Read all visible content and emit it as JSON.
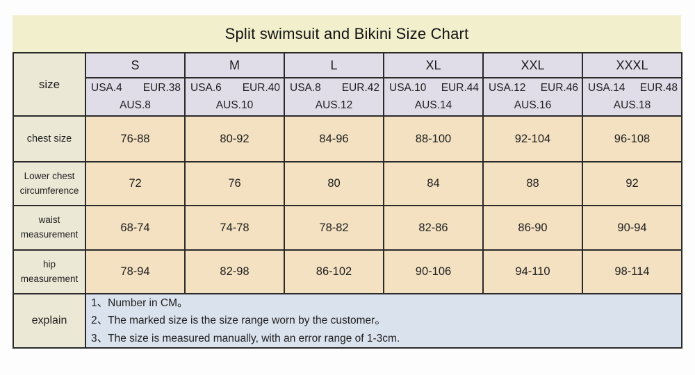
{
  "title": "Split swimsuit and Bikini Size Chart",
  "colors": {
    "title_band_bg": "#f2efcd",
    "header_bg": "#e0dde9",
    "label_bg": "#ebe8d6",
    "data_bg": "#f3e1c1",
    "explain_bg": "#dae2ee",
    "border": "#2a2a2a"
  },
  "table": {
    "size_label": "size",
    "columns": [
      {
        "name": "S",
        "usa": "USA.4",
        "eur": "EUR.38",
        "aus": "AUS.8"
      },
      {
        "name": "M",
        "usa": "USA.6",
        "eur": "EUR.40",
        "aus": "AUS.10"
      },
      {
        "name": "L",
        "usa": "USA.8",
        "eur": "EUR.42",
        "aus": "AUS.12"
      },
      {
        "name": "XL",
        "usa": "USA.10",
        "eur": "EUR.44",
        "aus": "AUS.14"
      },
      {
        "name": "XXL",
        "usa": "USA.12",
        "eur": "EUR.46",
        "aus": "AUS.16"
      },
      {
        "name": "XXXL",
        "usa": "USA.14",
        "eur": "EUR.48",
        "aus": "AUS.18"
      }
    ],
    "rows": [
      {
        "label": "chest size",
        "label_line1": "chest size",
        "label_line2": "",
        "values": [
          "76-88",
          "80-92",
          "84-96",
          "88-100",
          "92-104",
          "96-108"
        ]
      },
      {
        "label": "Lower chest circumference",
        "label_line1": "Lower chest",
        "label_line2": "circumference",
        "values": [
          "72",
          "76",
          "80",
          "84",
          "88",
          "92"
        ]
      },
      {
        "label": "waist measurement",
        "label_line1": "waist",
        "label_line2": "measurement",
        "values": [
          "68-74",
          "74-78",
          "78-82",
          "82-86",
          "86-90",
          "90-94"
        ]
      },
      {
        "label": "hip measurement",
        "label_line1": "hip",
        "label_line2": "measurement",
        "values": [
          "78-94",
          "82-98",
          "86-102",
          "90-106",
          "94-110",
          "98-114"
        ]
      }
    ],
    "explain": {
      "label": "explain",
      "lines": [
        "1、Number in CM。",
        "2、The marked size is the size range worn by the customer。",
        "3、The size is measured manually, with an error range of 1-3cm."
      ]
    }
  }
}
